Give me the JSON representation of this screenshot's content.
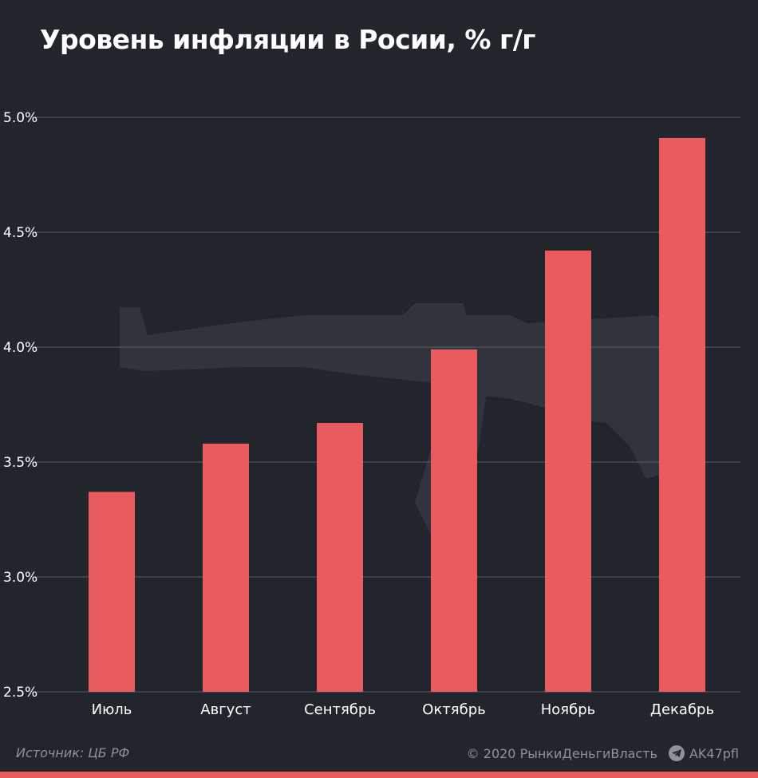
{
  "chart_data": {
    "type": "bar",
    "title": "Уровень инфляции в Росии, % г/г",
    "categories": [
      "Июль",
      "Август",
      "Сентябрь",
      "Октябрь",
      "Ноябрь",
      "Декабрь"
    ],
    "values": [
      3.37,
      3.58,
      3.67,
      3.99,
      4.42,
      4.91
    ],
    "ylim": [
      2.5,
      5.0
    ],
    "yticks": [
      "5.0%",
      "4.5%",
      "4.0%",
      "3.5%",
      "3.0%",
      "2.5%"
    ],
    "ytick_values": [
      5.0,
      4.5,
      4.0,
      3.5,
      3.0,
      2.5
    ],
    "grid": true,
    "bar_color": "#e85c60",
    "xlabel": "",
    "ylabel": ""
  },
  "footer": {
    "source": "Источник: ЦБ РФ",
    "copyright": "© 2020  РынкиДеньгиВласть",
    "channel": "AK47pfl"
  },
  "icons": {
    "telegram": "telegram-icon",
    "watermark": "rifle-watermark"
  },
  "colors": {
    "background": "#23252d",
    "bar": "#e85c60",
    "grid": "#5a5d66",
    "muted_text": "#8f929b"
  }
}
